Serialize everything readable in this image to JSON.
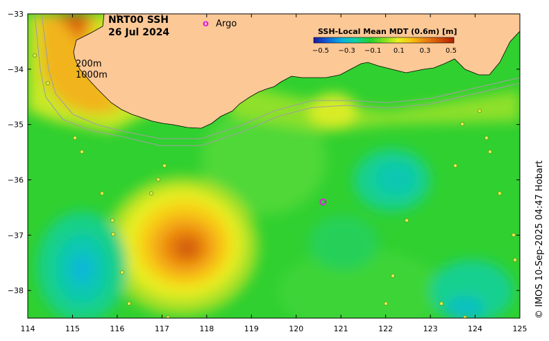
{
  "map": {
    "title_line1": "NRT00 SSH",
    "title_line2": "26 Jul 2024",
    "legend_argo_symbol": "o",
    "legend_argo_label": "Argo",
    "legend_argo_color": "#e020e0",
    "depth_label_200": "200m",
    "depth_label_1000": "1000m",
    "credit": "© IMOS 10-Sep-2025 04:47 Hobart",
    "land_color": "#fcc896",
    "contour_color": "#a0a0a0"
  },
  "colorbar": {
    "title": "SSH-Local Mean MDT (0.6m) [m]",
    "ticks": [
      "−0.5",
      "−0.3",
      "−0.1",
      "0.1",
      "0.3",
      "0.5"
    ],
    "colors": [
      "#1a1aa0",
      "#1060d8",
      "#08b0e0",
      "#10d0a0",
      "#20d030",
      "#80e020",
      "#e8f020",
      "#f8c010",
      "#e88010",
      "#d05008",
      "#b02000"
    ]
  },
  "axes": {
    "x_ticks": [
      "114",
      "115",
      "116",
      "117",
      "118",
      "119",
      "120",
      "121",
      "122",
      "123",
      "124",
      "125"
    ],
    "y_ticks": [
      "−33",
      "−34",
      "−35",
      "−36",
      "−37",
      "−38"
    ],
    "xlim": [
      114,
      125
    ],
    "ylim": [
      -38.5,
      -33
    ]
  },
  "features": {
    "warm_eddy_center": [
      117.6,
      -37.25
    ],
    "cold_eddy_center": [
      115.2,
      -37.6
    ],
    "argo_float": [
      120.6,
      -36.4
    ]
  }
}
